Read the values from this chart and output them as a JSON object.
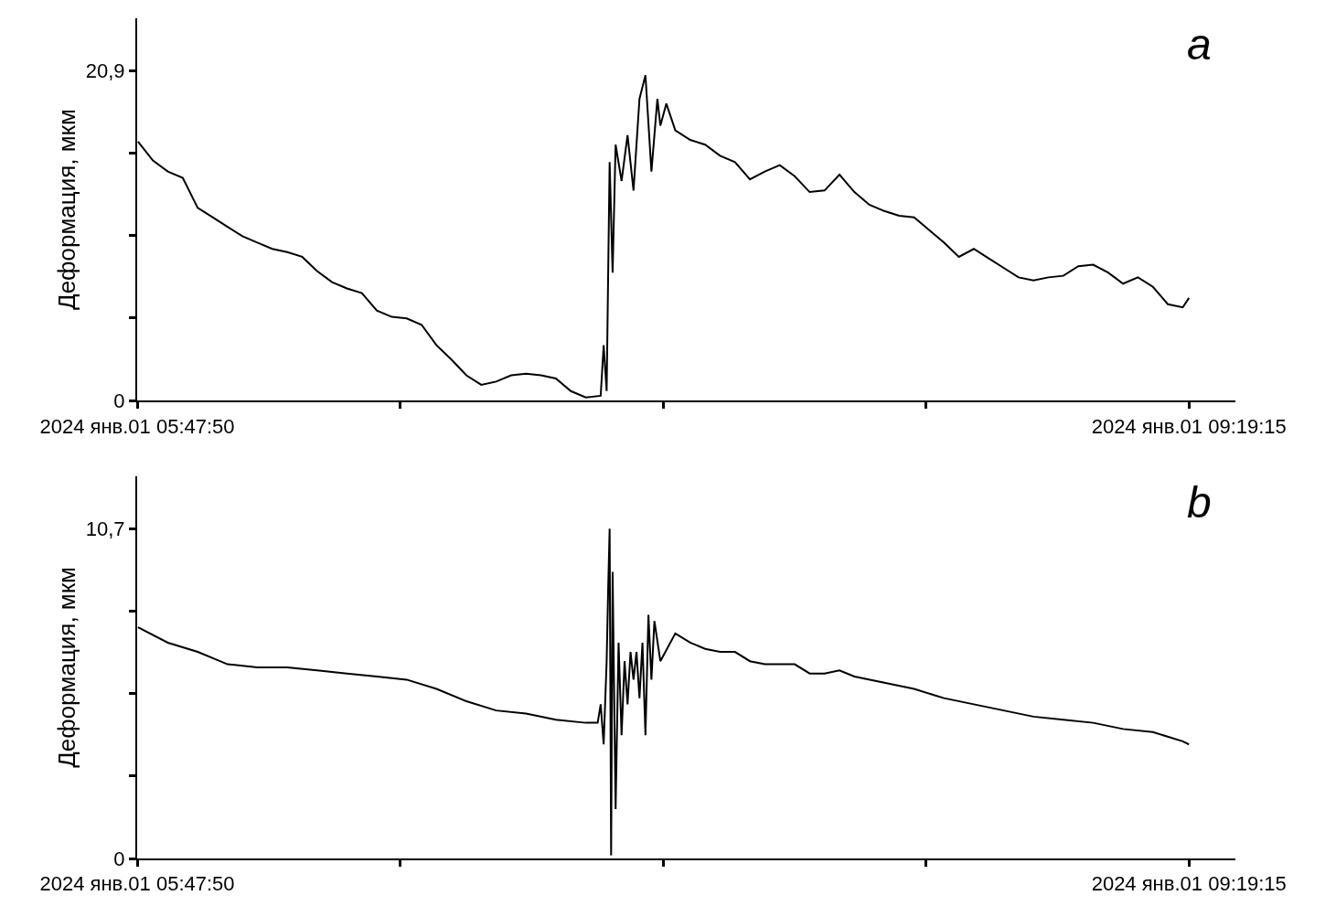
{
  "chart_data": [
    {
      "type": "line",
      "ylabel": "Деформация, мкм",
      "annotations": [
        "a"
      ],
      "grid": false,
      "x": [
        "2024-01-01T05:48",
        "2024-01-01T05:51",
        "2024-01-01T05:54",
        "2024-01-01T05:57",
        "2024-01-01T06:00",
        "2024-01-01T06:03",
        "2024-01-01T06:06",
        "2024-01-01T06:09",
        "2024-01-01T06:12",
        "2024-01-01T06:15",
        "2024-01-01T06:18",
        "2024-01-01T06:21",
        "2024-01-01T06:24",
        "2024-01-01T06:27",
        "2024-01-01T06:30",
        "2024-01-01T06:33",
        "2024-01-01T06:36",
        "2024-01-01T06:39",
        "2024-01-01T06:42",
        "2024-01-01T06:45",
        "2024-01-01T06:48",
        "2024-01-01T06:51",
        "2024-01-01T06:54",
        "2024-01-01T06:57",
        "2024-01-01T07:00",
        "2024-01-01T07:03",
        "2024-01-01T07:06",
        "2024-01-01T07:09",
        "2024-01-01T07:12",
        "2024-01-01T07:15",
        "2024-01-01T07:18",
        "2024-01-01T07:21",
        "2024-01-01T07:21:36",
        "2024-01-01T07:22:12",
        "2024-01-01T07:22:48",
        "2024-01-01T07:23:24",
        "2024-01-01T07:24",
        "2024-01-01T07:25:12",
        "2024-01-01T07:26:24",
        "2024-01-01T07:27:36",
        "2024-01-01T07:28:48",
        "2024-01-01T07:30",
        "2024-01-01T07:31:12",
        "2024-01-01T07:32:24",
        "2024-01-01T07:33",
        "2024-01-01T07:34:12",
        "2024-01-01T07:36",
        "2024-01-01T07:39",
        "2024-01-01T07:42",
        "2024-01-01T07:45",
        "2024-01-01T07:48",
        "2024-01-01T07:51",
        "2024-01-01T07:54",
        "2024-01-01T07:57",
        "2024-01-01T08:00",
        "2024-01-01T08:03",
        "2024-01-01T08:06",
        "2024-01-01T08:09",
        "2024-01-01T08:12",
        "2024-01-01T08:15",
        "2024-01-01T08:18",
        "2024-01-01T08:21",
        "2024-01-01T08:24",
        "2024-01-01T08:27",
        "2024-01-01T08:30",
        "2024-01-01T08:33",
        "2024-01-01T08:36",
        "2024-01-01T08:39",
        "2024-01-01T08:42",
        "2024-01-01T08:45",
        "2024-01-01T08:48",
        "2024-01-01T08:51",
        "2024-01-01T08:54",
        "2024-01-01T08:57",
        "2024-01-01T09:00",
        "2024-01-01T09:03",
        "2024-01-01T09:06",
        "2024-01-01T09:09",
        "2024-01-01T09:12",
        "2024-01-01T09:15",
        "2024-01-01T09:18",
        "2024-01-01T09:19:15"
      ],
      "series": [
        {
          "color": "#000000",
          "values": [
            16.4,
            15.2,
            14.5,
            14.1,
            12.2,
            11.6,
            11.0,
            10.4,
            10.0,
            9.6,
            9.4,
            9.1,
            8.2,
            7.5,
            7.1,
            6.8,
            5.7,
            5.3,
            5.2,
            4.8,
            3.5,
            2.6,
            1.6,
            1.0,
            1.2,
            1.6,
            1.7,
            1.6,
            1.4,
            0.6,
            0.2,
            0.3,
            3.5,
            0.6,
            15.1,
            8.1,
            16.2,
            13.9,
            16.8,
            13.3,
            19.1,
            20.6,
            14.5,
            19.1,
            17.4,
            18.8,
            17.1,
            16.5,
            16.2,
            15.5,
            15.1,
            14.0,
            14.5,
            14.9,
            14.2,
            13.2,
            13.3,
            14.3,
            13.2,
            12.4,
            12.0,
            11.7,
            11.6,
            10.8,
            10.0,
            9.1,
            9.6,
            9.0,
            8.4,
            7.8,
            7.6,
            7.8,
            7.9,
            8.5,
            8.6,
            8.1,
            7.4,
            7.8,
            7.2,
            6.1,
            5.9,
            6.5
          ]
        }
      ],
      "xlim": [
        "2024-01-01T05:47:50",
        "2024-01-01T09:28:35"
      ],
      "xticks": [
        {
          "value": "2024-01-01T05:47:50",
          "label": "2024 янв.01 05:47:50"
        },
        {
          "value": "2024-01-01T06:40:41",
          "label": null
        },
        {
          "value": "2024-01-01T07:33:33",
          "label": null
        },
        {
          "value": "2024-01-01T08:26:24",
          "label": null
        },
        {
          "value": "2024-01-01T09:19:15",
          "label": "2024 янв.01 09:19:15"
        }
      ],
      "ylim": [
        0,
        24.2
      ],
      "yticks": [
        {
          "value": 0,
          "label": "0"
        },
        {
          "value": 5.225,
          "label": null
        },
        {
          "value": 10.45,
          "label": null
        },
        {
          "value": 15.675,
          "label": null
        },
        {
          "value": 20.9,
          "label": "20,9"
        }
      ]
    },
    {
      "type": "line",
      "ylabel": "Деформация, мкм",
      "annotations": [
        "b"
      ],
      "grid": false,
      "x": [
        "2024-01-01T05:48",
        "2024-01-01T05:54",
        "2024-01-01T06:00",
        "2024-01-01T06:06",
        "2024-01-01T06:12",
        "2024-01-01T06:18",
        "2024-01-01T06:24",
        "2024-01-01T06:30",
        "2024-01-01T06:36",
        "2024-01-01T06:42",
        "2024-01-01T06:48",
        "2024-01-01T06:54",
        "2024-01-01T07:00",
        "2024-01-01T07:06",
        "2024-01-01T07:12",
        "2024-01-01T07:18",
        "2024-01-01T07:20:24",
        "2024-01-01T07:21",
        "2024-01-01T07:21:36",
        "2024-01-01T07:22:12",
        "2024-01-01T07:22:30",
        "2024-01-01T07:22:48",
        "2024-01-01T07:23:06",
        "2024-01-01T07:23:24",
        "2024-01-01T07:24",
        "2024-01-01T07:24:36",
        "2024-01-01T07:25:12",
        "2024-01-01T07:25:48",
        "2024-01-01T07:26:24",
        "2024-01-01T07:27",
        "2024-01-01T07:27:36",
        "2024-01-01T07:28:12",
        "2024-01-01T07:28:48",
        "2024-01-01T07:29:24",
        "2024-01-01T07:30",
        "2024-01-01T07:30:36",
        "2024-01-01T07:31:12",
        "2024-01-01T07:31:48",
        "2024-01-01T07:33",
        "2024-01-01T07:36",
        "2024-01-01T07:39",
        "2024-01-01T07:42",
        "2024-01-01T07:45",
        "2024-01-01T07:48",
        "2024-01-01T07:51",
        "2024-01-01T07:54",
        "2024-01-01T07:57",
        "2024-01-01T08:00",
        "2024-01-01T08:03",
        "2024-01-01T08:06",
        "2024-01-01T08:09",
        "2024-01-01T08:12",
        "2024-01-01T08:18",
        "2024-01-01T08:24",
        "2024-01-01T08:30",
        "2024-01-01T08:36",
        "2024-01-01T08:42",
        "2024-01-01T08:48",
        "2024-01-01T08:54",
        "2024-01-01T09:00",
        "2024-01-01T09:06",
        "2024-01-01T09:12",
        "2024-01-01T09:18",
        "2024-01-01T09:19:15"
      ],
      "series": [
        {
          "color": "#000000",
          "values": [
            7.5,
            7.0,
            6.7,
            6.3,
            6.2,
            6.2,
            6.1,
            6.0,
            5.9,
            5.8,
            5.5,
            5.1,
            4.8,
            4.7,
            4.5,
            4.4,
            4.4,
            5.0,
            3.7,
            6.4,
            8.7,
            10.7,
            0.1,
            9.3,
            1.6,
            7.0,
            4.0,
            6.4,
            5.0,
            6.7,
            5.8,
            6.7,
            5.2,
            7.0,
            4.0,
            7.9,
            5.8,
            7.7,
            6.4,
            7.3,
            7.0,
            6.8,
            6.7,
            6.7,
            6.4,
            6.3,
            6.3,
            6.3,
            6.0,
            6.0,
            6.1,
            5.9,
            5.7,
            5.5,
            5.2,
            5.0,
            4.8,
            4.6,
            4.5,
            4.4,
            4.2,
            4.1,
            3.8,
            3.7
          ]
        }
      ],
      "xlim": [
        "2024-01-01T05:47:50",
        "2024-01-01T09:28:35"
      ],
      "xticks": [
        {
          "value": "2024-01-01T05:47:50",
          "label": "2024 янв.01 05:47:50"
        },
        {
          "value": "2024-01-01T06:40:41",
          "label": null
        },
        {
          "value": "2024-01-01T07:33:33",
          "label": null
        },
        {
          "value": "2024-01-01T08:26:24",
          "label": null
        },
        {
          "value": "2024-01-01T09:19:15",
          "label": "2024 янв.01 09:19:15"
        }
      ],
      "ylim": [
        0,
        12.4
      ],
      "yticks": [
        {
          "value": 0,
          "label": "0"
        },
        {
          "value": 2.675,
          "label": null
        },
        {
          "value": 5.35,
          "label": null
        },
        {
          "value": 8.025,
          "label": null
        },
        {
          "value": 10.7,
          "label": "10,7"
        }
      ]
    }
  ]
}
